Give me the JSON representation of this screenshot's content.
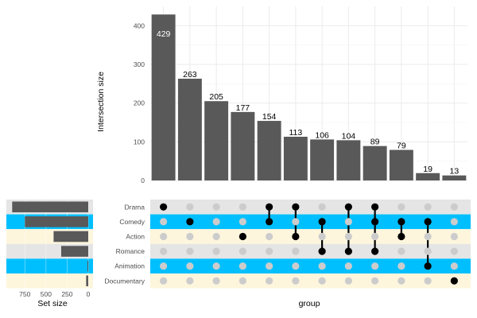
{
  "chart_data": {
    "type": "bar",
    "title": "",
    "ylabel": "Intersection size",
    "xlabel": "group",
    "set_size_label": "Set size",
    "ylim": [
      0,
      450
    ],
    "y_ticks": [
      0,
      100,
      200,
      300,
      400
    ],
    "values": [
      429,
      263,
      205,
      177,
      154,
      113,
      106,
      104,
      89,
      79,
      19,
      13
    ],
    "sets": [
      "Drama",
      "Comedy",
      "Action",
      "Romance",
      "Animation",
      "Documentary"
    ],
    "set_sizes": [
      900,
      750,
      410,
      320,
      10,
      25
    ],
    "set_size_ticks": [
      750,
      500,
      250,
      0
    ],
    "set_size_max": 950,
    "intersections": [
      [
        "Drama"
      ],
      [
        "Comedy"
      ],
      [],
      [
        "Action"
      ],
      [
        "Drama",
        "Comedy"
      ],
      [
        "Drama",
        "Action"
      ],
      [
        "Comedy",
        "Romance"
      ],
      [
        "Drama",
        "Romance"
      ],
      [
        "Drama",
        "Comedy",
        "Romance"
      ],
      [
        "Comedy",
        "Action"
      ],
      [
        "Comedy",
        "Animation"
      ],
      [
        "Documentary"
      ]
    ],
    "grid": true,
    "row_colors": {
      "gray": "#e5e5e5",
      "blue": "#00bfff",
      "cream": "#fdf6dc"
    },
    "bar_color": "#595959",
    "dot_active": "#000000",
    "dot_inactive": "#cccccc"
  }
}
